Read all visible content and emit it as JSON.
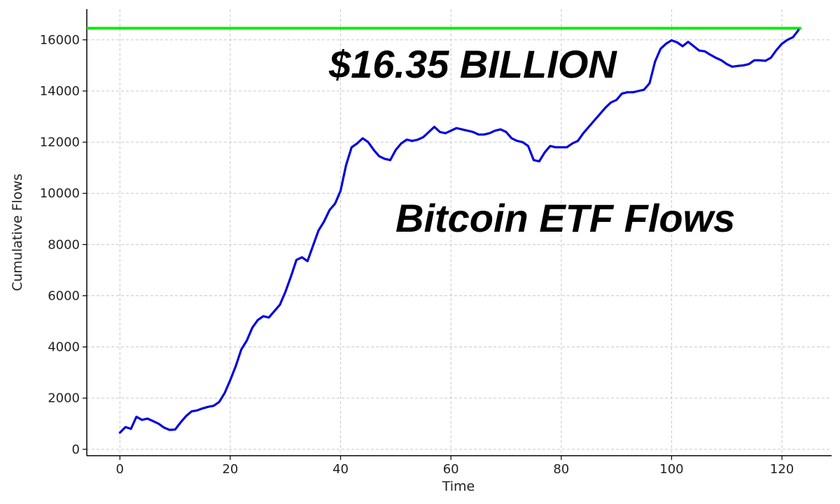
{
  "chart_data": {
    "type": "line",
    "title": "",
    "xlabel": "Time",
    "ylabel": "Cumulative Flows",
    "xlim": [
      -6,
      129
    ],
    "ylim": [
      -250,
      17200
    ],
    "xticks": [
      0,
      20,
      40,
      60,
      80,
      100,
      120
    ],
    "yticks": [
      0,
      2000,
      4000,
      6000,
      8000,
      10000,
      12000,
      14000,
      16000
    ],
    "grid": true,
    "legend": "none",
    "annotations": [
      {
        "text": "$16.35 BILLION"
      },
      {
        "text": "Bitcoin ETF Flows"
      }
    ],
    "reference_line": {
      "y": 16450,
      "x_start": -6,
      "x_end": 123.5,
      "color": "#00ee00"
    },
    "series": [
      {
        "color": "#0000dd",
        "x": [
          0,
          1,
          2,
          3,
          4,
          5,
          6,
          7,
          8,
          9,
          10,
          11,
          12,
          13,
          14,
          15,
          16,
          17,
          18,
          19,
          20,
          21,
          22,
          23,
          24,
          25,
          26,
          27,
          28,
          29,
          30,
          31,
          32,
          33,
          34,
          35,
          36,
          37,
          38,
          39,
          40,
          41,
          42,
          43,
          44,
          45,
          46,
          47,
          48,
          49,
          50,
          51,
          52,
          53,
          54,
          55,
          56,
          57,
          58,
          59,
          60,
          61,
          62,
          63,
          64,
          65,
          66,
          67,
          68,
          69,
          70,
          71,
          72,
          73,
          74,
          75,
          76,
          77,
          78,
          79,
          80,
          81,
          82,
          83,
          84,
          85,
          86,
          87,
          88,
          89,
          90,
          91,
          92,
          93,
          94,
          95,
          96,
          97,
          98,
          99,
          100,
          101,
          102,
          103,
          104,
          105,
          106,
          107,
          108,
          109,
          110,
          111,
          112,
          113,
          114,
          115,
          116,
          117,
          118,
          119,
          120,
          121,
          122,
          123
        ],
        "y": [
          650,
          870,
          800,
          1270,
          1150,
          1200,
          1100,
          1000,
          850,
          760,
          770,
          1050,
          1300,
          1480,
          1520,
          1600,
          1660,
          1700,
          1850,
          2200,
          2700,
          3250,
          3900,
          4250,
          4750,
          5050,
          5200,
          5150,
          5400,
          5650,
          6150,
          6750,
          7400,
          7500,
          7350,
          7950,
          8550,
          8900,
          9350,
          9600,
          10100,
          11100,
          11800,
          11950,
          12150,
          12000,
          11700,
          11450,
          11350,
          11300,
          11700,
          11950,
          12100,
          12050,
          12100,
          12200,
          12400,
          12600,
          12400,
          12350,
          12450,
          12550,
          12500,
          12450,
          12400,
          12300,
          12300,
          12350,
          12450,
          12500,
          12400,
          12150,
          12050,
          12000,
          11850,
          11300,
          11250,
          11600,
          11850,
          11800,
          11800,
          11800,
          11950,
          12050,
          12350,
          12600,
          12850,
          13100,
          13350,
          13550,
          13650,
          13900,
          13950,
          13950,
          14000,
          14050,
          14300,
          15150,
          15650,
          15850,
          15980,
          15900,
          15750,
          15920,
          15750,
          15580,
          15550,
          15420,
          15300,
          15200,
          15050,
          14950,
          14980,
          15000,
          15050,
          15200,
          15200,
          15180,
          15300,
          15600,
          15850,
          16000,
          16100,
          16380
        ]
      }
    ]
  }
}
